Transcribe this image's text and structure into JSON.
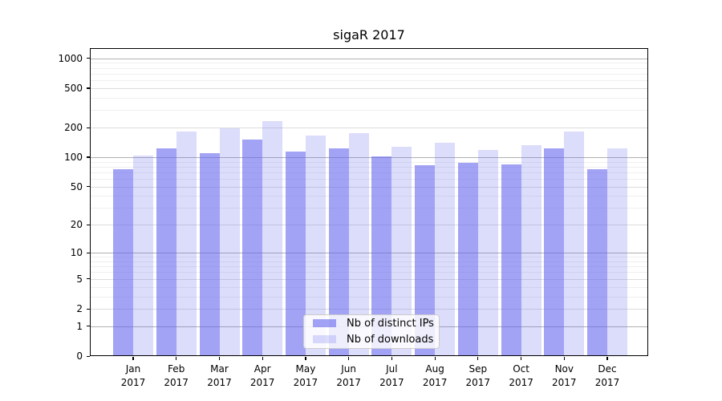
{
  "chart_data": {
    "type": "bar",
    "title": "sigaR 2017",
    "categories": [
      "Jan",
      "Feb",
      "Mar",
      "Apr",
      "May",
      "Jun",
      "Jul",
      "Aug",
      "Sep",
      "Oct",
      "Nov",
      "Dec"
    ],
    "category_year": "2017",
    "series": [
      {
        "name": "Nb of distinct IPs",
        "color": "rgba(102,102,238,0.6)",
        "values": [
          75,
          124,
          109,
          150,
          115,
          123,
          101,
          83,
          87,
          84,
          122,
          76
        ]
      },
      {
        "name": "Nb of downloads",
        "color": "rgba(102,102,238,0.23)",
        "values": [
          103,
          182,
          198,
          231,
          165,
          176,
          127,
          140,
          118,
          133,
          181,
          122
        ]
      }
    ],
    "yscale": "log1p",
    "ylim": [
      0,
      1266
    ],
    "yticks": [
      0,
      1,
      2,
      5,
      10,
      20,
      50,
      100,
      200,
      500,
      1000
    ],
    "grid": "horizontal",
    "legend_position": "lower-center",
    "colors": {
      "bar_base": "#6666ee",
      "grid_decade": "#b0b0b0",
      "grid_labeled": "#dcdcdc",
      "grid_minor": "#efefef",
      "spine": "#000000",
      "background": "#ffffff"
    }
  }
}
